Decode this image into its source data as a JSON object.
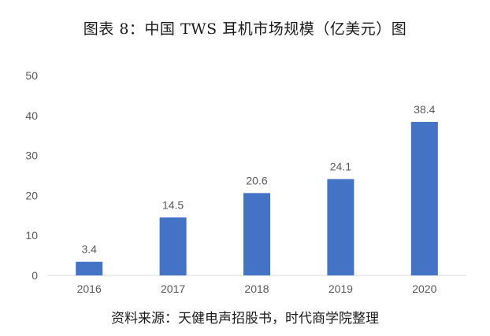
{
  "title": "图表 8：中国 TWS 耳机市场规模（亿美元）图",
  "source": "资料来源：天健电声招股书，时代商学院整理",
  "chart_data": {
    "type": "bar",
    "title": "",
    "xlabel": "",
    "ylabel": "",
    "categories": [
      "2016",
      "2017",
      "2018",
      "2019",
      "2020"
    ],
    "values": [
      3.4,
      14.5,
      20.6,
      24.1,
      38.4
    ],
    "data_labels": [
      "3.4",
      "14.5",
      "20.6",
      "24.1",
      "38.4"
    ],
    "ylim": [
      0,
      50
    ],
    "yticks": [
      0,
      10,
      20,
      30,
      40,
      50
    ],
    "ytick_labels": [
      "0",
      "10",
      "20",
      "30",
      "40",
      "50"
    ],
    "grid": false,
    "legend": "none",
    "bar_color": "#4472C4",
    "axis_color": "#D9D9D9",
    "label_color": "#595959"
  }
}
